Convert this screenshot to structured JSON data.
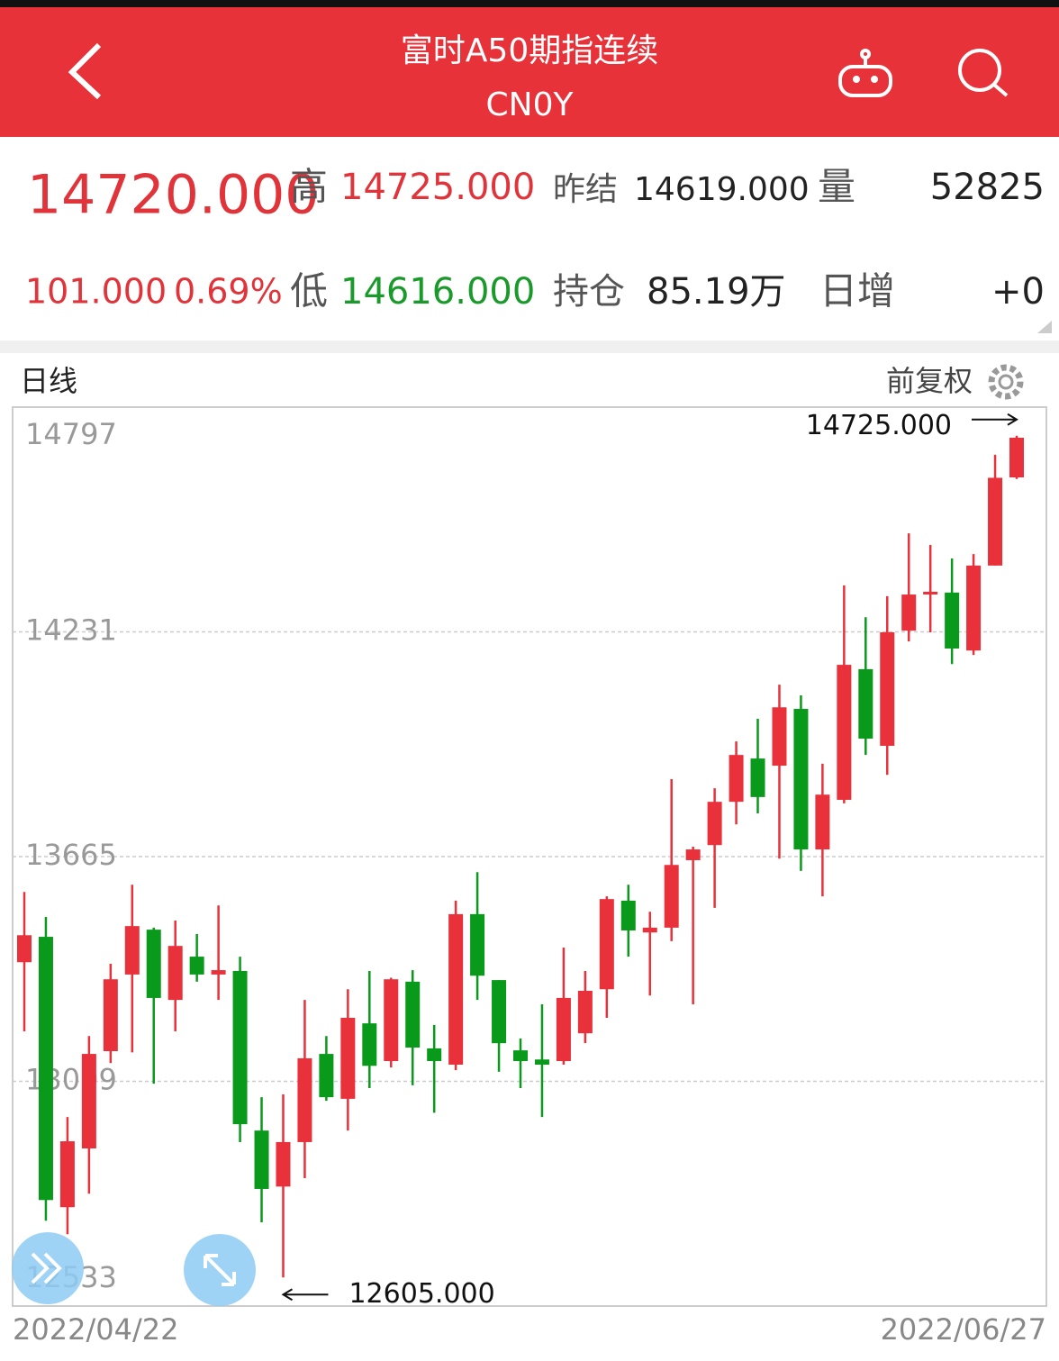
{
  "header": {
    "title": "富时A50期指连续",
    "code": "CN0Y"
  },
  "quote": {
    "price": "14720.000",
    "high_label": "高",
    "high": "14725.000",
    "prev_label": "昨结",
    "prev": "14619.000",
    "volume_label": "量",
    "volume": "52825",
    "change": "101.000",
    "change_pct": "0.69%",
    "low_label": "低",
    "low": "14616.000",
    "oi_label": "持仓",
    "oi": "85.19万",
    "daily_inc_label": "日增",
    "daily_inc": "+0"
  },
  "chart_data": {
    "type": "candlestick",
    "period": "日线",
    "adjust": "前复权",
    "ylim": [
      12533,
      14797
    ],
    "yticks": [
      14797,
      14231,
      13665,
      13099,
      12533
    ],
    "grid": true,
    "up_color": "#e8313a",
    "down_color": "#0a9a1b",
    "categories": [
      "2022/04/22",
      null,
      null,
      null,
      null,
      null,
      null,
      null,
      null,
      null,
      null,
      null,
      null,
      null,
      null,
      null,
      null,
      null,
      null,
      null,
      null,
      null,
      null,
      null,
      null,
      null,
      null,
      null,
      null,
      null,
      null,
      null,
      null,
      null,
      null,
      null,
      null,
      null,
      null,
      null,
      null,
      null,
      null,
      null,
      null,
      null,
      "2022/06/27"
    ],
    "open": [
      13399,
      13463,
      12782,
      12930,
      13175,
      13368,
      13481,
      13304,
      13413,
      13368,
      13377,
      12975,
      12834,
      12946,
      13168,
      13055,
      13245,
      13150,
      13350,
      13182,
      13141,
      13520,
      13354,
      13177,
      13154,
      13150,
      13220,
      13331,
      13554,
      13474,
      13486,
      13656,
      13694,
      13803,
      13912,
      13894,
      14037,
      13683,
      13808,
      14137,
      13944,
      14234,
      14325,
      14330,
      14184,
      14398,
      14620
    ],
    "high": [
      13576,
      13513,
      13009,
      13213,
      13395,
      13594,
      13486,
      13504,
      13470,
      13542,
      13413,
      13059,
      13066,
      13304,
      13213,
      13331,
      13377,
      13360,
      13379,
      13241,
      13554,
      13626,
      13354,
      13207,
      13293,
      13436,
      13377,
      13565,
      13594,
      13526,
      13860,
      13690,
      13837,
      13955,
      14012,
      14098,
      14071,
      13899,
      14348,
      14268,
      14321,
      14479,
      14450,
      14416,
      14427,
      14677,
      14725
    ],
    "low": [
      13225,
      12748,
      12714,
      12816,
      13145,
      13172,
      13093,
      13225,
      13350,
      13304,
      12946,
      12744,
      12605,
      12855,
      13050,
      12975,
      13082,
      13134,
      13089,
      13020,
      13127,
      13304,
      13123,
      13082,
      13009,
      13141,
      13195,
      13259,
      13413,
      13315,
      13452,
      13293,
      13536,
      13746,
      13774,
      13660,
      13629,
      13565,
      13799,
      13921,
      13871,
      14207,
      14230,
      14150,
      14173,
      14398,
      14616
    ],
    "close": [
      13467,
      12800,
      12948,
      13168,
      13356,
      13490,
      13309,
      13440,
      13368,
      13379,
      12991,
      12828,
      12946,
      13157,
      13059,
      13259,
      13138,
      13356,
      13184,
      13150,
      13520,
      13365,
      13195,
      13150,
      13141,
      13309,
      13327,
      13558,
      13479,
      13486,
      13644,
      13683,
      13803,
      13921,
      13815,
      14041,
      13683,
      13821,
      14148,
      13962,
      14230,
      14325,
      14332,
      14189,
      14398,
      14619,
      14720
    ],
    "annotations": [
      {
        "text": "14725.000"
      },
      {
        "text": "12605.000"
      }
    ]
  }
}
